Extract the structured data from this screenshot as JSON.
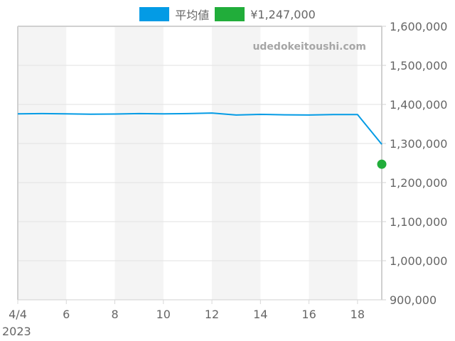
{
  "legend": [
    {
      "label": "平均値",
      "color": "#039be5"
    },
    {
      "label": "¥1,247,000",
      "color": "#21ad3a"
    }
  ],
  "watermark": "udedokeitoushi.com",
  "chart_data": {
    "type": "line",
    "title": "",
    "xlabel": "",
    "ylabel": "",
    "x_tick_labels": [
      "4/4",
      "6",
      "8",
      "10",
      "12",
      "14",
      "16",
      "18"
    ],
    "x_sub_label": "2023",
    "y_tick_labels": [
      "1,600,000",
      "1,500,000",
      "1,400,000",
      "1,300,000",
      "1,200,000",
      "1,100,000",
      "1,000,000",
      "900,000"
    ],
    "ylim": [
      900000,
      1600000
    ],
    "xlim": [
      "2023-04-04",
      "2023-04-19"
    ],
    "grid": true,
    "legend_position": "top",
    "series": [
      {
        "name": "平均値",
        "color": "#039be5",
        "x": [
          "4/4",
          "4/5",
          "4/6",
          "4/7",
          "4/8",
          "4/9",
          "4/10",
          "4/11",
          "4/12",
          "4/13",
          "4/14",
          "4/15",
          "4/16",
          "4/17",
          "4/18",
          "4/19"
        ],
        "values": [
          1376000,
          1376500,
          1376000,
          1375000,
          1375500,
          1376500,
          1376000,
          1376500,
          1378000,
          1373000,
          1374500,
          1373500,
          1373000,
          1374000,
          1374000,
          1298000
        ]
      },
      {
        "name": "¥1,247,000",
        "color": "#21ad3a",
        "x": [
          "4/19"
        ],
        "values": [
          1247000
        ]
      }
    ]
  }
}
